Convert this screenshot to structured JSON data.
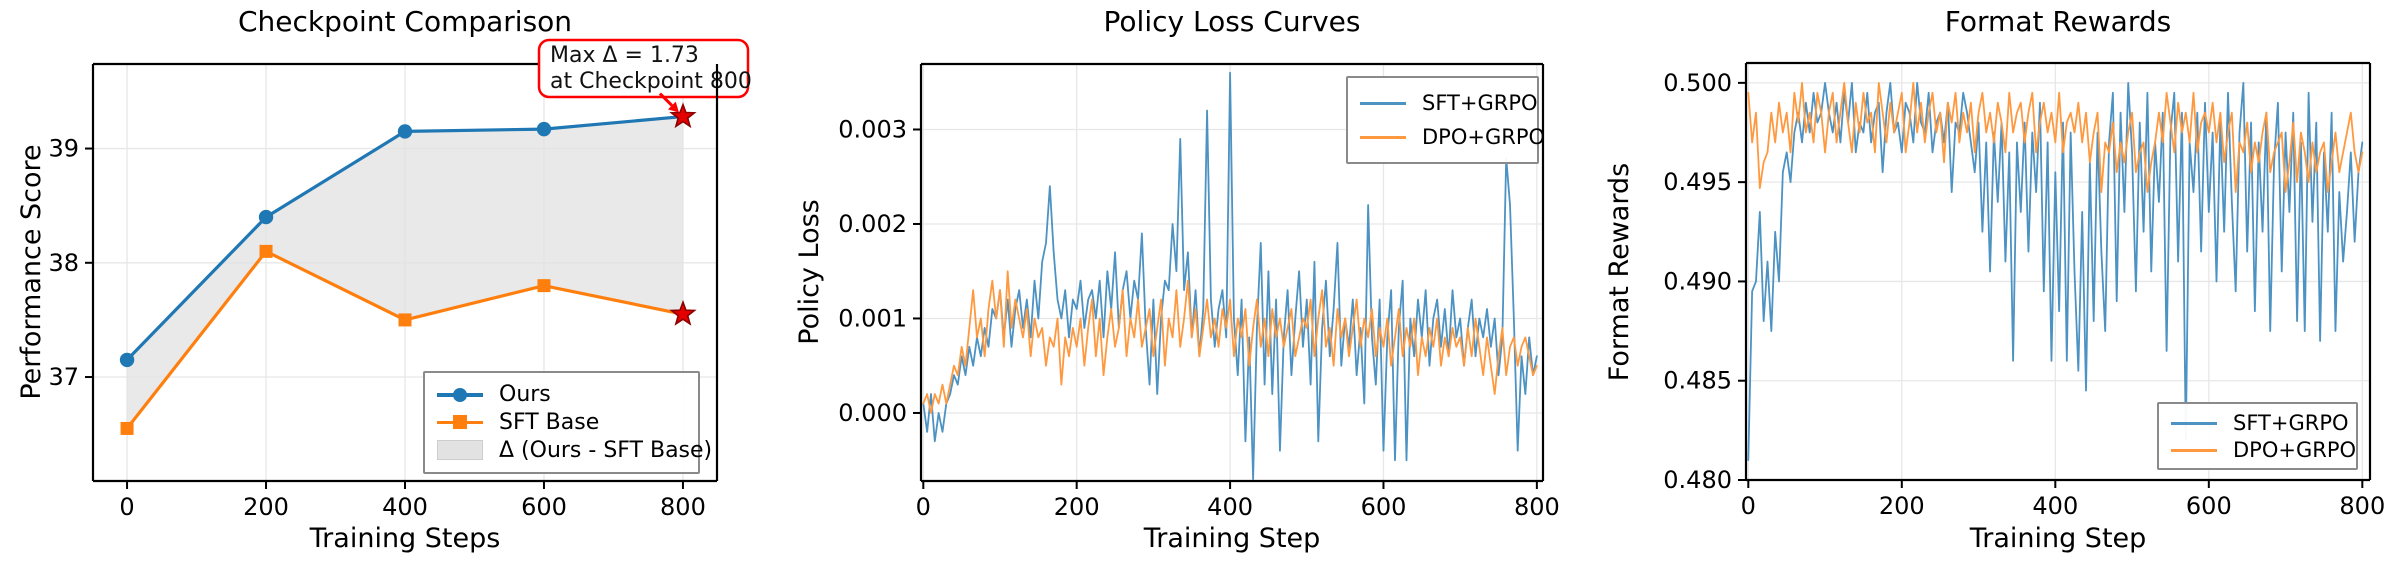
{
  "figure": {
    "background": "#ffffff",
    "grid_color": "#e7e7e7",
    "spine_color": "#000000"
  },
  "annotation_style": {
    "border_color": "#ff0000",
    "background": "#ffffff",
    "star_fill": "#e50000",
    "star_edge": "#8b0000"
  },
  "chart_data": [
    {
      "type": "line",
      "title": "Checkpoint Comparison",
      "xlabel": "Training Steps",
      "ylabel": "Performance Score",
      "xlim": [
        -49,
        849
      ],
      "ylim": [
        36.09,
        39.74
      ],
      "grid": true,
      "legend_position": "lower right",
      "xticks": {
        "values": [
          0,
          200,
          400,
          600,
          800
        ],
        "labels": [
          "0",
          "200",
          "400",
          "600",
          "800"
        ]
      },
      "yticks": {
        "values": [
          37,
          38,
          39
        ],
        "labels": [
          "37",
          "38",
          "39"
        ]
      },
      "series": [
        {
          "name": "Ours",
          "color": "#1f77b4",
          "marker": "circle",
          "line_width": 3.2,
          "x": [
            0,
            200,
            400,
            600,
            800
          ],
          "values": [
            37.15,
            38.4,
            39.15,
            39.17,
            39.28
          ],
          "end_star": true
        },
        {
          "name": "SFT Base",
          "color": "#ff7f0e",
          "marker": "square",
          "line_width": 3.2,
          "x": [
            0,
            200,
            400,
            600,
            800
          ],
          "values": [
            36.55,
            38.1,
            37.5,
            37.8,
            37.55
          ],
          "end_star": true
        }
      ],
      "fill_between": {
        "label": "Δ (Ours - SFT Base)",
        "color": "#e2e2e2",
        "upper": "Ours",
        "lower": "SFT Base"
      },
      "annotation": {
        "line1": "Max Δ = 1.73",
        "line2": "at Checkpoint 800",
        "max_delta": 1.73,
        "checkpoint": 800
      }
    },
    {
      "type": "line",
      "title": "Policy Loss Curves",
      "xlabel": "Training Step",
      "ylabel": "Policy Loss",
      "xlim": [
        -3,
        808
      ],
      "ylim": [
        -0.00072,
        0.003693
      ],
      "grid": true,
      "legend_position": "upper right",
      "xticks": {
        "values": [
          0,
          200,
          400,
          600,
          800
        ],
        "labels": [
          "0",
          "200",
          "400",
          "600",
          "800"
        ]
      },
      "yticks": {
        "values": [
          0.0,
          0.001,
          0.002,
          0.003
        ],
        "labels": [
          "0.000",
          "0.001",
          "0.002",
          "0.003"
        ]
      },
      "series": [
        {
          "name": "SFT+GRPO",
          "color": "#4c92c3",
          "line_width": 1.8,
          "x_start": 0,
          "x_step": 5,
          "values": [
            0.0001,
            -0.0002,
            0.0002,
            -0.0003,
            0,
            -0.0002,
            0.0001,
            0.0002,
            0.0004,
            0.0003,
            0.0006,
            0.0004,
            0.0007,
            0.0005,
            0.0008,
            0.0006,
            0.0009,
            0.0007,
            0.0011,
            0.001,
            0.0013,
            0.0008,
            0.0012,
            0.0007,
            0.0011,
            0.0013,
            0.0009,
            0.0012,
            0.0008,
            0.0014,
            0.001,
            0.0016,
            0.0018,
            0.0024,
            0.0017,
            0.0012,
            0.001,
            0.0013,
            0.0008,
            0.0012,
            0.0011,
            0.0014,
            0.0009,
            0.0012,
            0.0013,
            0.001,
            0.0014,
            0.0008,
            0.0015,
            0.0011,
            0.0017,
            0.0009,
            0.0013,
            0.0015,
            0.001,
            0.0014,
            0.0012,
            0.0019,
            0.0009,
            0.0003,
            0.0012,
            0.0002,
            0.001,
            0.0014,
            0.0013,
            0.002,
            0.0015,
            0.0029,
            0.0013,
            0.0017,
            0.0008,
            0.0013,
            0.0006,
            0.0011,
            0.0032,
            0.0012,
            0.0007,
            0.0011,
            0.0013,
            0.0008,
            0.0036,
            0.001,
            0.0004,
            0.0012,
            -0.0003,
            0.0008,
            -0.0007,
            0.0009,
            0.0018,
            0.0003,
            0.0015,
            0.0002,
            0.0012,
            -0.0004,
            0.0008,
            0.0013,
            0.0004,
            0.001,
            0.0015,
            0.0007,
            0.0012,
            0.0003,
            0.0016,
            -0.0003,
            0.0009,
            0.0014,
            0.0006,
            0.0011,
            0.0018,
            0.0005,
            0.001,
            0.0007,
            0.0012,
            0.0004,
            0.0009,
            0.0001,
            0.0022,
            0.0008,
            0.0003,
            0.0012,
            -0.0004,
            0.0008,
            0.0013,
            -0.0005,
            0.0009,
            0.0014,
            -0.0005,
            0.001,
            0.0006,
            0.0012,
            0.0008,
            0.0013,
            0.0005,
            0.001,
            0.0012,
            0.0007,
            0.0011,
            0.0006,
            0.0013,
            0.0008,
            0.001,
            0.0005,
            0.0009,
            0.0012,
            0.0006,
            0.001,
            0.0008,
            0.0011,
            0.0007,
            0.001,
            0.0004,
            0.0008,
            0.0027,
            0.0022,
            0.001,
            -0.0004,
            0.0006,
            0.0002,
            0.0008,
            0.0004,
            0.0006
          ]
        },
        {
          "name": "DPO+GRPO",
          "color": "#ff993f",
          "line_width": 1.8,
          "x_start": 0,
          "x_step": 5,
          "values": [
            0.0001,
            0.0002,
            0,
            0.0002,
            0.0001,
            0.0003,
            0.0001,
            0.0003,
            0.0005,
            0.0004,
            0.0007,
            0.0005,
            0.0009,
            0.0013,
            0.0008,
            0.001,
            0.0006,
            0.0011,
            0.0014,
            0.001,
            0.0013,
            0.0007,
            0.0015,
            0.0009,
            0.0012,
            0.001,
            0.0008,
            0.0011,
            0.0006,
            0.001,
            0.0008,
            0.0009,
            0.0005,
            0.0008,
            0.0007,
            0.001,
            0.0003,
            0.0008,
            0.0006,
            0.0009,
            0.0007,
            0.001,
            0.0005,
            0.0009,
            0.0012,
            0.0006,
            0.001,
            0.0004,
            0.0008,
            0.0011,
            0.0007,
            0.0009,
            0.0013,
            0.0006,
            0.001,
            0.0008,
            0.0012,
            0.0007,
            0.0009,
            0.0011,
            0.0006,
            0.0009,
            0.0012,
            0.0005,
            0.001,
            0.0008,
            0.0013,
            0.0007,
            0.001,
            0.0014,
            0.0008,
            0.0011,
            0.0006,
            0.0009,
            0.0012,
            0.0008,
            0.001,
            0.0007,
            0.0011,
            0.0009,
            0.0012,
            0.0006,
            0.001,
            0.0008,
            0.0011,
            0.0005,
            0.0009,
            0.0012,
            0.0007,
            0.001,
            0.0006,
            0.0011,
            0.0008,
            0.001,
            0.0007,
            0.0009,
            0.0011,
            0.0006,
            0.0008,
            0.001,
            0.0009,
            0.0012,
            0.0006,
            0.001,
            0.0013,
            0.0007,
            0.0009,
            0.0005,
            0.0011,
            0.0008,
            0.001,
            0.0006,
            0.0009,
            0.0012,
            0.0007,
            0.001,
            0.0008,
            0.0011,
            0.0006,
            0.0009,
            0.0007,
            0.001,
            0.0005,
            0.0008,
            0.0011,
            0.0006,
            0.0009,
            0.0007,
            0.001,
            0.0004,
            0.0008,
            0.0006,
            0.0009,
            0.0007,
            0.001,
            0.0005,
            0.0008,
            0.0006,
            0.0009,
            0.0007,
            0.0008,
            0.0005,
            0.0009,
            0.0006,
            0.001,
            0.0007,
            0.0004,
            0.0008,
            0.0005,
            0.0002,
            0.0006,
            0.0009,
            0.0004,
            0.0007,
            0.0008,
            0.0005,
            0.0007,
            0.0008,
            0.0006,
            0.0004,
            0.0005
          ]
        }
      ]
    },
    {
      "type": "line",
      "title": "Format Rewards",
      "xlabel": "Training Step",
      "ylabel": "Format Rewards",
      "xlim": [
        -3,
        810
      ],
      "ylim": [
        0.48,
        0.501
      ],
      "grid": true,
      "legend_position": "lower right",
      "xticks": {
        "values": [
          0,
          200,
          400,
          600,
          800
        ],
        "labels": [
          "0",
          "200",
          "400",
          "600",
          "800"
        ]
      },
      "yticks": {
        "values": [
          0.48,
          0.485,
          0.49,
          0.495,
          0.5
        ],
        "labels": [
          "0.480",
          "0.485",
          "0.490",
          "0.495",
          "0.500"
        ]
      },
      "series": [
        {
          "name": "SFT+GRPO",
          "color": "#4c92c3",
          "line_width": 1.8,
          "x_start": 0,
          "x_step": 5,
          "values": [
            0.481,
            0.4895,
            0.49,
            0.4935,
            0.488,
            0.491,
            0.4875,
            0.4925,
            0.49,
            0.4955,
            0.4965,
            0.495,
            0.4975,
            0.4985,
            0.497,
            0.499,
            0.4975,
            0.4995,
            0.498,
            0.4985,
            0.5,
            0.4985,
            0.4975,
            0.499,
            0.497,
            0.4995,
            0.498,
            0.5,
            0.4965,
            0.498,
            0.4975,
            0.4995,
            0.497,
            0.4985,
            0.499,
            0.4955,
            0.4985,
            0.5,
            0.4975,
            0.498,
            0.4965,
            0.499,
            0.4985,
            0.497,
            0.5,
            0.498,
            0.4975,
            0.4995,
            0.4965,
            0.498,
            0.4985,
            0.497,
            0.499,
            0.4945,
            0.498,
            0.4975,
            0.4995,
            0.4985,
            0.497,
            0.4955,
            0.498,
            0.4925,
            0.497,
            0.4905,
            0.4975,
            0.494,
            0.498,
            0.491,
            0.4965,
            0.486,
            0.497,
            0.4935,
            0.498,
            0.4915,
            0.4975,
            0.4945,
            0.499,
            0.4895,
            0.497,
            0.486,
            0.4955,
            0.4885,
            0.498,
            0.486,
            0.4975,
            0.4905,
            0.4855,
            0.4935,
            0.4845,
            0.496,
            0.488,
            0.4975,
            0.4915,
            0.4875,
            0.497,
            0.4995,
            0.489,
            0.4985,
            0.4935,
            0.5,
            0.4965,
            0.4895,
            0.498,
            0.4925,
            0.4995,
            0.4905,
            0.497,
            0.494,
            0.4985,
            0.4865,
            0.4975,
            0.4995,
            0.491,
            0.4985,
            0.482,
            0.497,
            0.4945,
            0.4985,
            0.4915,
            0.499,
            0.4935,
            0.4975,
            0.49,
            0.498,
            0.4925,
            0.4995,
            0.494,
            0.4895,
            0.4975,
            0.5,
            0.4915,
            0.498,
            0.4885,
            0.497,
            0.4925,
            0.4985,
            0.4875,
            0.496,
            0.499,
            0.4905,
            0.4975,
            0.4935,
            0.4985,
            0.488,
            0.497,
            0.4875,
            0.4995,
            0.493,
            0.498,
            0.487,
            0.4965,
            0.4925,
            0.4985,
            0.4875,
            0.4945,
            0.491,
            0.4935,
            0.4965,
            0.492,
            0.4955,
            0.497
          ]
        },
        {
          "name": "DPO+GRPO",
          "color": "#ff993f",
          "line_width": 1.8,
          "x_start": 0,
          "x_step": 5,
          "values": [
            0.4995,
            0.497,
            0.4985,
            0.4947,
            0.496,
            0.4965,
            0.4985,
            0.497,
            0.499,
            0.4975,
            0.4985,
            0.4965,
            0.4995,
            0.498,
            0.5,
            0.4975,
            0.4985,
            0.497,
            0.4995,
            0.4985,
            0.4965,
            0.4985,
            0.4995,
            0.497,
            0.4985,
            0.5,
            0.498,
            0.4965,
            0.499,
            0.4975,
            0.4995,
            0.498,
            0.4985,
            0.4965,
            0.5,
            0.4985,
            0.497,
            0.499,
            0.4975,
            0.4985,
            0.4995,
            0.4965,
            0.498,
            0.5,
            0.4975,
            0.499,
            0.497,
            0.4985,
            0.4995,
            0.4975,
            0.4985,
            0.496,
            0.499,
            0.498,
            0.4995,
            0.497,
            0.4985,
            0.4975,
            0.499,
            0.4965,
            0.4985,
            0.4995,
            0.4975,
            0.4985,
            0.497,
            0.499,
            0.498,
            0.4965,
            0.4995,
            0.4975,
            0.4985,
            0.499,
            0.497,
            0.4985,
            0.4995,
            0.4965,
            0.498,
            0.499,
            0.4975,
            0.4985,
            0.497,
            0.4995,
            0.4965,
            0.498,
            0.4985,
            0.4975,
            0.499,
            0.497,
            0.4985,
            0.496,
            0.4975,
            0.4985,
            0.4945,
            0.497,
            0.4965,
            0.498,
            0.4955,
            0.497,
            0.496,
            0.4975,
            0.4985,
            0.4955,
            0.4965,
            0.497,
            0.4945,
            0.496,
            0.497,
            0.4985,
            0.497,
            0.4995,
            0.498,
            0.4965,
            0.499,
            0.4975,
            0.4985,
            0.497,
            0.4995,
            0.4965,
            0.498,
            0.4985,
            0.4975,
            0.499,
            0.497,
            0.4985,
            0.496,
            0.4975,
            0.4985,
            0.4945,
            0.497,
            0.4965,
            0.498,
            0.4955,
            0.497,
            0.496,
            0.4975,
            0.4985,
            0.4955,
            0.4965,
            0.497,
            0.4975,
            0.4945,
            0.496,
            0.498,
            0.495,
            0.4975,
            0.4965,
            0.495,
            0.497,
            0.4955,
            0.4965,
            0.497,
            0.4945,
            0.496,
            0.4975,
            0.4955,
            0.4965,
            0.4975,
            0.4985,
            0.4965,
            0.4955,
            0.4965
          ]
        }
      ]
    }
  ]
}
